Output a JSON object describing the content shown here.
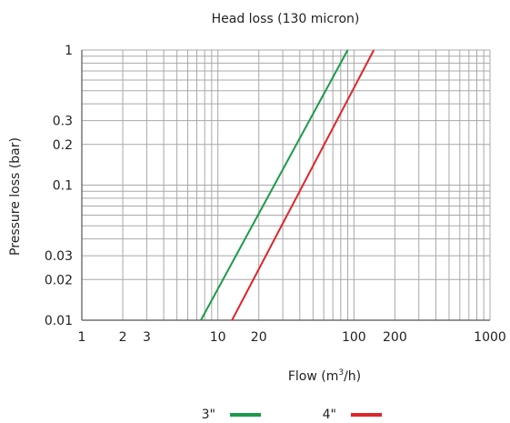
{
  "chart_data": {
    "type": "line",
    "title": "Head loss (130 micron)",
    "xlabel": "Flow (m",
    "xlabel_sup": "3",
    "xlabel_end": "/h)",
    "ylabel": "Pressure loss (bar)",
    "x_scale": "log",
    "y_scale": "log",
    "xlim": [
      1,
      1000
    ],
    "ylim": [
      0.01,
      1
    ],
    "grid": true,
    "legend_position": "bottom-center",
    "x_ticks": [
      {
        "value": 1,
        "label": "1"
      },
      {
        "value": 2,
        "label": "2"
      },
      {
        "value": 3,
        "label": "3"
      },
      {
        "value": 10,
        "label": "10"
      },
      {
        "value": 20,
        "label": "20"
      },
      {
        "value": 100,
        "label": "100"
      },
      {
        "value": 200,
        "label": "200"
      },
      {
        "value": 1000,
        "label": "1000"
      }
    ],
    "y_ticks": [
      {
        "value": 0.01,
        "label": "0.01"
      },
      {
        "value": 0.02,
        "label": "0.02"
      },
      {
        "value": 0.03,
        "label": "0.03"
      },
      {
        "value": 0.1,
        "label": "0.1"
      },
      {
        "value": 0.2,
        "label": "0.2"
      },
      {
        "value": 0.3,
        "label": "0.3"
      },
      {
        "value": 1,
        "label": "1"
      }
    ],
    "series": [
      {
        "name": "3\"",
        "color": "#1a9b4b",
        "x": [
          7.5,
          90
        ],
        "y": [
          0.01,
          1
        ]
      },
      {
        "name": "4\"",
        "color": "#e0242b",
        "x": [
          12.7,
          140
        ],
        "y": [
          0.01,
          1
        ]
      }
    ],
    "colors": {
      "grid": "#a8a8a8",
      "axis": "#555555"
    }
  }
}
